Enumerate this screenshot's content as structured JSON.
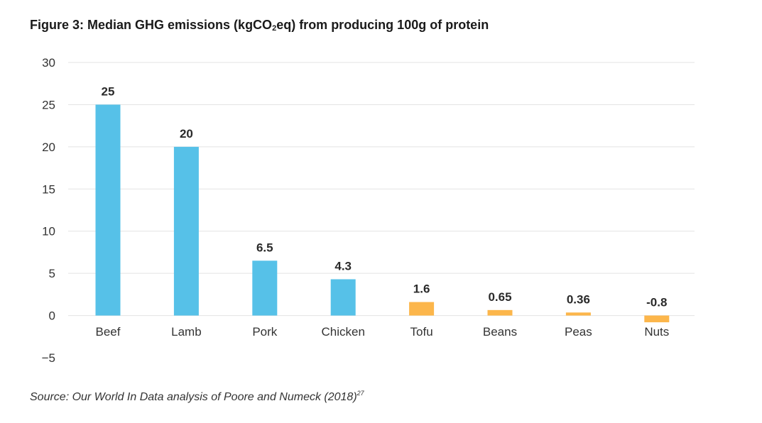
{
  "title": {
    "prefix": "Figure 3: Median GHG emissions (kgCO",
    "subscript": "2",
    "suffix": "eq) from producing 100g of protein"
  },
  "source": {
    "text": "Source: Our World In Data analysis of Poore and Numeck (2018)",
    "footnote": "27"
  },
  "chart_data": {
    "type": "bar",
    "title": "Figure 3: Median GHG emissions (kgCO2eq) from producing 100g of protein",
    "xlabel": "",
    "ylabel": "",
    "categories": [
      "Beef",
      "Lamb",
      "Pork",
      "Chicken",
      "Tofu",
      "Beans",
      "Peas",
      "Nuts"
    ],
    "values": [
      25,
      20,
      6.5,
      4.3,
      1.6,
      0.65,
      0.36,
      -0.8
    ],
    "value_labels": [
      "25",
      "20",
      "6.5",
      "4.3",
      "1.6",
      "0.65",
      "0.36",
      "-0.8"
    ],
    "bar_colors": [
      "#56c1e8",
      "#56c1e8",
      "#56c1e8",
      "#56c1e8",
      "#fcb64b",
      "#fcb64b",
      "#fcb64b",
      "#fcb64b"
    ],
    "ylim": [
      -5,
      30
    ],
    "yticks": [
      30,
      25,
      20,
      15,
      10,
      5,
      0,
      -5
    ],
    "grid": true,
    "gridline_color": "#e3e3e3",
    "legend": "none"
  }
}
